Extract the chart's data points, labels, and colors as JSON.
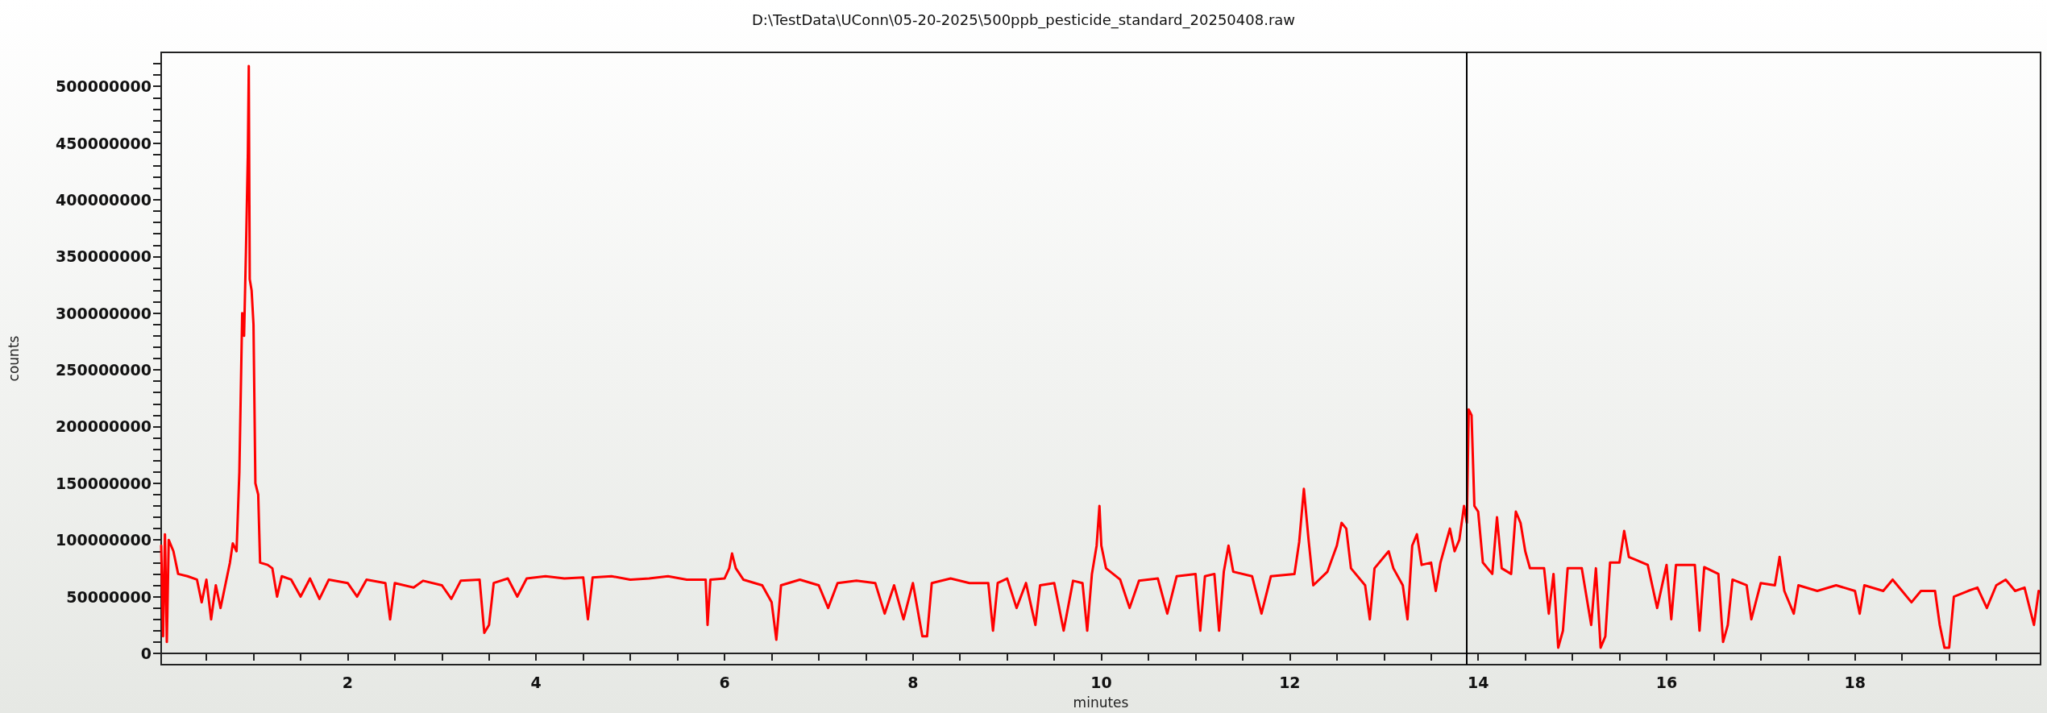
{
  "chart_data": {
    "type": "line",
    "title": "D:\\TestData\\UConn\\05-20-2025\\500ppb_pesticide_standard_20250408.raw",
    "xlabel": "minutes",
    "ylabel": "counts",
    "xlim": [
      0.02,
      19.97
    ],
    "ylim": [
      -10000000,
      530000000
    ],
    "xticks": [
      {
        "value": 0.5,
        "label": null
      },
      {
        "value": 1,
        "label": null
      },
      {
        "value": 1.5,
        "label": null
      },
      2,
      {
        "value": 2.5,
        "label": null
      },
      {
        "value": 3,
        "label": null
      },
      {
        "value": 3.5,
        "label": null
      },
      4,
      {
        "value": 4.5,
        "label": null
      },
      {
        "value": 5,
        "label": null
      },
      {
        "value": 5.5,
        "label": null
      },
      6,
      {
        "value": 6.5,
        "label": null
      },
      {
        "value": 7,
        "label": null
      },
      {
        "value": 7.5,
        "label": null
      },
      8,
      {
        "value": 8.5,
        "label": null
      },
      {
        "value": 9,
        "label": null
      },
      {
        "value": 9.5,
        "label": null
      },
      10,
      {
        "value": 10.5,
        "label": null
      },
      {
        "value": 11,
        "label": null
      },
      {
        "value": 11.5,
        "label": null
      },
      12,
      {
        "value": 12.5,
        "label": null
      },
      {
        "value": 13,
        "label": null
      },
      {
        "value": 13.5,
        "label": null
      },
      14,
      {
        "value": 14.5,
        "label": null
      },
      {
        "value": 15,
        "label": null
      },
      {
        "value": 15.5,
        "label": null
      },
      16,
      {
        "value": 16.5,
        "label": null
      },
      {
        "value": 17,
        "label": null
      },
      {
        "value": 17.5,
        "label": null
      },
      18,
      {
        "value": 18.5,
        "label": null
      },
      {
        "value": 19,
        "label": null
      },
      {
        "value": 19.5,
        "label": null
      }
    ],
    "yticks": [
      0,
      {
        "value": 10000000,
        "label": null
      },
      {
        "value": 20000000,
        "label": null
      },
      {
        "value": 30000000,
        "label": null
      },
      {
        "value": 40000000,
        "label": null
      },
      50000000,
      {
        "value": 60000000,
        "label": null
      },
      {
        "value": 70000000,
        "label": null
      },
      {
        "value": 80000000,
        "label": null
      },
      {
        "value": 90000000,
        "label": null
      },
      100000000,
      {
        "value": 110000000,
        "label": null
      },
      {
        "value": 120000000,
        "label": null
      },
      {
        "value": 130000000,
        "label": null
      },
      {
        "value": 140000000,
        "label": null
      },
      150000000,
      {
        "value": 160000000,
        "label": null
      },
      {
        "value": 170000000,
        "label": null
      },
      {
        "value": 180000000,
        "label": null
      },
      {
        "value": 190000000,
        "label": null
      },
      200000000,
      {
        "value": 210000000,
        "label": null
      },
      {
        "value": 220000000,
        "label": null
      },
      {
        "value": 230000000,
        "label": null
      },
      {
        "value": 240000000,
        "label": null
      },
      250000000,
      {
        "value": 260000000,
        "label": null
      },
      {
        "value": 270000000,
        "label": null
      },
      {
        "value": 280000000,
        "label": null
      },
      {
        "value": 290000000,
        "label": null
      },
      300000000,
      {
        "value": 310000000,
        "label": null
      },
      {
        "value": 320000000,
        "label": null
      },
      {
        "value": 330000000,
        "label": null
      },
      {
        "value": 340000000,
        "label": null
      },
      350000000,
      {
        "value": 360000000,
        "label": null
      },
      {
        "value": 370000000,
        "label": null
      },
      {
        "value": 380000000,
        "label": null
      },
      {
        "value": 390000000,
        "label": null
      },
      400000000,
      {
        "value": 410000000,
        "label": null
      },
      {
        "value": 420000000,
        "label": null
      },
      {
        "value": 430000000,
        "label": null
      },
      {
        "value": 440000000,
        "label": null
      },
      450000000,
      {
        "value": 460000000,
        "label": null
      },
      {
        "value": 470000000,
        "label": null
      },
      {
        "value": 480000000,
        "label": null
      },
      {
        "value": 490000000,
        "label": null
      },
      500000000,
      {
        "value": 510000000,
        "label": null
      },
      {
        "value": 520000000,
        "label": null
      }
    ],
    "marker": "none",
    "line_style": "solid",
    "ref_lines": [
      {
        "axis": "x",
        "value": 13.88,
        "color": "#000000"
      }
    ],
    "series": [
      {
        "color": "#ff0000",
        "x": [
          0.02,
          0.04,
          0.06,
          0.08,
          0.1,
          0.15,
          0.2,
          0.3,
          0.4,
          0.45,
          0.5,
          0.55,
          0.6,
          0.65,
          0.7,
          0.75,
          0.78,
          0.82,
          0.85,
          0.88,
          0.9,
          0.92,
          0.94,
          0.95,
          0.96,
          0.98,
          1.0,
          1.02,
          1.05,
          1.07,
          1.15,
          1.2,
          1.25,
          1.3,
          1.4,
          1.5,
          1.6,
          1.7,
          1.8,
          2.0,
          2.1,
          2.2,
          2.4,
          2.45,
          2.5,
          2.7,
          2.8,
          3.0,
          3.1,
          3.2,
          3.4,
          3.45,
          3.5,
          3.55,
          3.7,
          3.8,
          3.9,
          4.1,
          4.3,
          4.5,
          4.55,
          4.6,
          4.8,
          5.0,
          5.2,
          5.4,
          5.6,
          5.8,
          5.82,
          5.85,
          6.0,
          6.05,
          6.08,
          6.12,
          6.2,
          6.4,
          6.5,
          6.55,
          6.6,
          6.8,
          7.0,
          7.1,
          7.2,
          7.4,
          7.6,
          7.7,
          7.8,
          7.9,
          8.0,
          8.1,
          8.15,
          8.2,
          8.4,
          8.6,
          8.8,
          8.85,
          8.9,
          9.0,
          9.1,
          9.2,
          9.3,
          9.35,
          9.5,
          9.6,
          9.7,
          9.8,
          9.85,
          9.9,
          9.95,
          9.98,
          10.0,
          10.05,
          10.2,
          10.3,
          10.4,
          10.6,
          10.7,
          10.8,
          11.0,
          11.05,
          11.1,
          11.2,
          11.25,
          11.3,
          11.35,
          11.4,
          11.6,
          11.7,
          11.8,
          12.05,
          12.1,
          12.15,
          12.2,
          12.25,
          12.4,
          12.5,
          12.55,
          12.6,
          12.65,
          12.8,
          12.85,
          12.9,
          13.0,
          13.05,
          13.1,
          13.2,
          13.25,
          13.3,
          13.35,
          13.4,
          13.5,
          13.55,
          13.6,
          13.7,
          13.75,
          13.8,
          13.85,
          13.88,
          13.9,
          13.93,
          13.96,
          14.0,
          14.05,
          14.1,
          14.15,
          14.2,
          14.25,
          14.35,
          14.4,
          14.45,
          14.5,
          14.55,
          14.7,
          14.75,
          14.8,
          14.85,
          14.9,
          14.95,
          15.1,
          15.2,
          15.25,
          15.3,
          15.35,
          15.4,
          15.5,
          15.55,
          15.6,
          15.8,
          15.9,
          16.0,
          16.05,
          16.1,
          16.3,
          16.35,
          16.4,
          16.55,
          16.6,
          16.65,
          16.7,
          16.85,
          16.9,
          17.0,
          17.15,
          17.2,
          17.25,
          17.35,
          17.4,
          17.6,
          17.8,
          18.0,
          18.05,
          18.1,
          18.3,
          18.4,
          18.5,
          18.6,
          18.7,
          18.85,
          18.9,
          18.95,
          19.0,
          19.05,
          19.2,
          19.3,
          19.4,
          19.5,
          19.6,
          19.7,
          19.8,
          19.9,
          19.95
        ],
        "values": [
          95000000,
          15000000,
          105000000,
          10000000,
          100000000,
          90000000,
          70000000,
          68000000,
          65000000,
          45000000,
          65000000,
          30000000,
          60000000,
          40000000,
          60000000,
          80000000,
          97000000,
          90000000,
          160000000,
          300000000,
          280000000,
          355000000,
          440000000,
          518000000,
          330000000,
          320000000,
          290000000,
          150000000,
          140000000,
          80000000,
          78000000,
          75000000,
          50000000,
          68000000,
          65000000,
          50000000,
          66000000,
          48000000,
          65000000,
          62000000,
          50000000,
          65000000,
          62000000,
          30000000,
          62000000,
          58000000,
          64000000,
          60000000,
          48000000,
          64000000,
          65000000,
          18000000,
          25000000,
          62000000,
          66000000,
          50000000,
          66000000,
          68000000,
          66000000,
          67000000,
          30000000,
          67000000,
          68000000,
          65000000,
          66000000,
          68000000,
          65000000,
          65000000,
          25000000,
          65000000,
          66000000,
          75000000,
          88000000,
          75000000,
          65000000,
          60000000,
          45000000,
          12000000,
          60000000,
          65000000,
          60000000,
          40000000,
          62000000,
          64000000,
          62000000,
          35000000,
          60000000,
          30000000,
          62000000,
          15000000,
          15000000,
          62000000,
          66000000,
          62000000,
          62000000,
          20000000,
          62000000,
          66000000,
          40000000,
          62000000,
          25000000,
          60000000,
          62000000,
          20000000,
          64000000,
          62000000,
          20000000,
          70000000,
          95000000,
          130000000,
          95000000,
          75000000,
          65000000,
          40000000,
          64000000,
          66000000,
          35000000,
          68000000,
          70000000,
          20000000,
          68000000,
          70000000,
          20000000,
          72000000,
          95000000,
          72000000,
          68000000,
          35000000,
          68000000,
          70000000,
          98000000,
          145000000,
          100000000,
          60000000,
          72000000,
          95000000,
          115000000,
          110000000,
          75000000,
          60000000,
          30000000,
          75000000,
          85000000,
          90000000,
          75000000,
          60000000,
          30000000,
          95000000,
          105000000,
          78000000,
          80000000,
          55000000,
          80000000,
          110000000,
          90000000,
          100000000,
          130000000,
          115000000,
          215000000,
          210000000,
          130000000,
          125000000,
          80000000,
          75000000,
          70000000,
          120000000,
          75000000,
          70000000,
          125000000,
          115000000,
          90000000,
          75000000,
          75000000,
          35000000,
          70000000,
          5000000,
          20000000,
          75000000,
          75000000,
          25000000,
          75000000,
          5000000,
          15000000,
          80000000,
          80000000,
          108000000,
          85000000,
          78000000,
          40000000,
          78000000,
          30000000,
          78000000,
          78000000,
          20000000,
          76000000,
          70000000,
          10000000,
          25000000,
          65000000,
          60000000,
          30000000,
          62000000,
          60000000,
          85000000,
          55000000,
          35000000,
          60000000,
          55000000,
          60000000,
          55000000,
          35000000,
          60000000,
          55000000,
          65000000,
          55000000,
          45000000,
          55000000,
          55000000,
          25000000,
          5000000,
          5000000,
          50000000,
          55000000,
          58000000,
          40000000,
          60000000,
          65000000,
          55000000,
          58000000,
          25000000,
          55000000
        ]
      }
    ]
  }
}
